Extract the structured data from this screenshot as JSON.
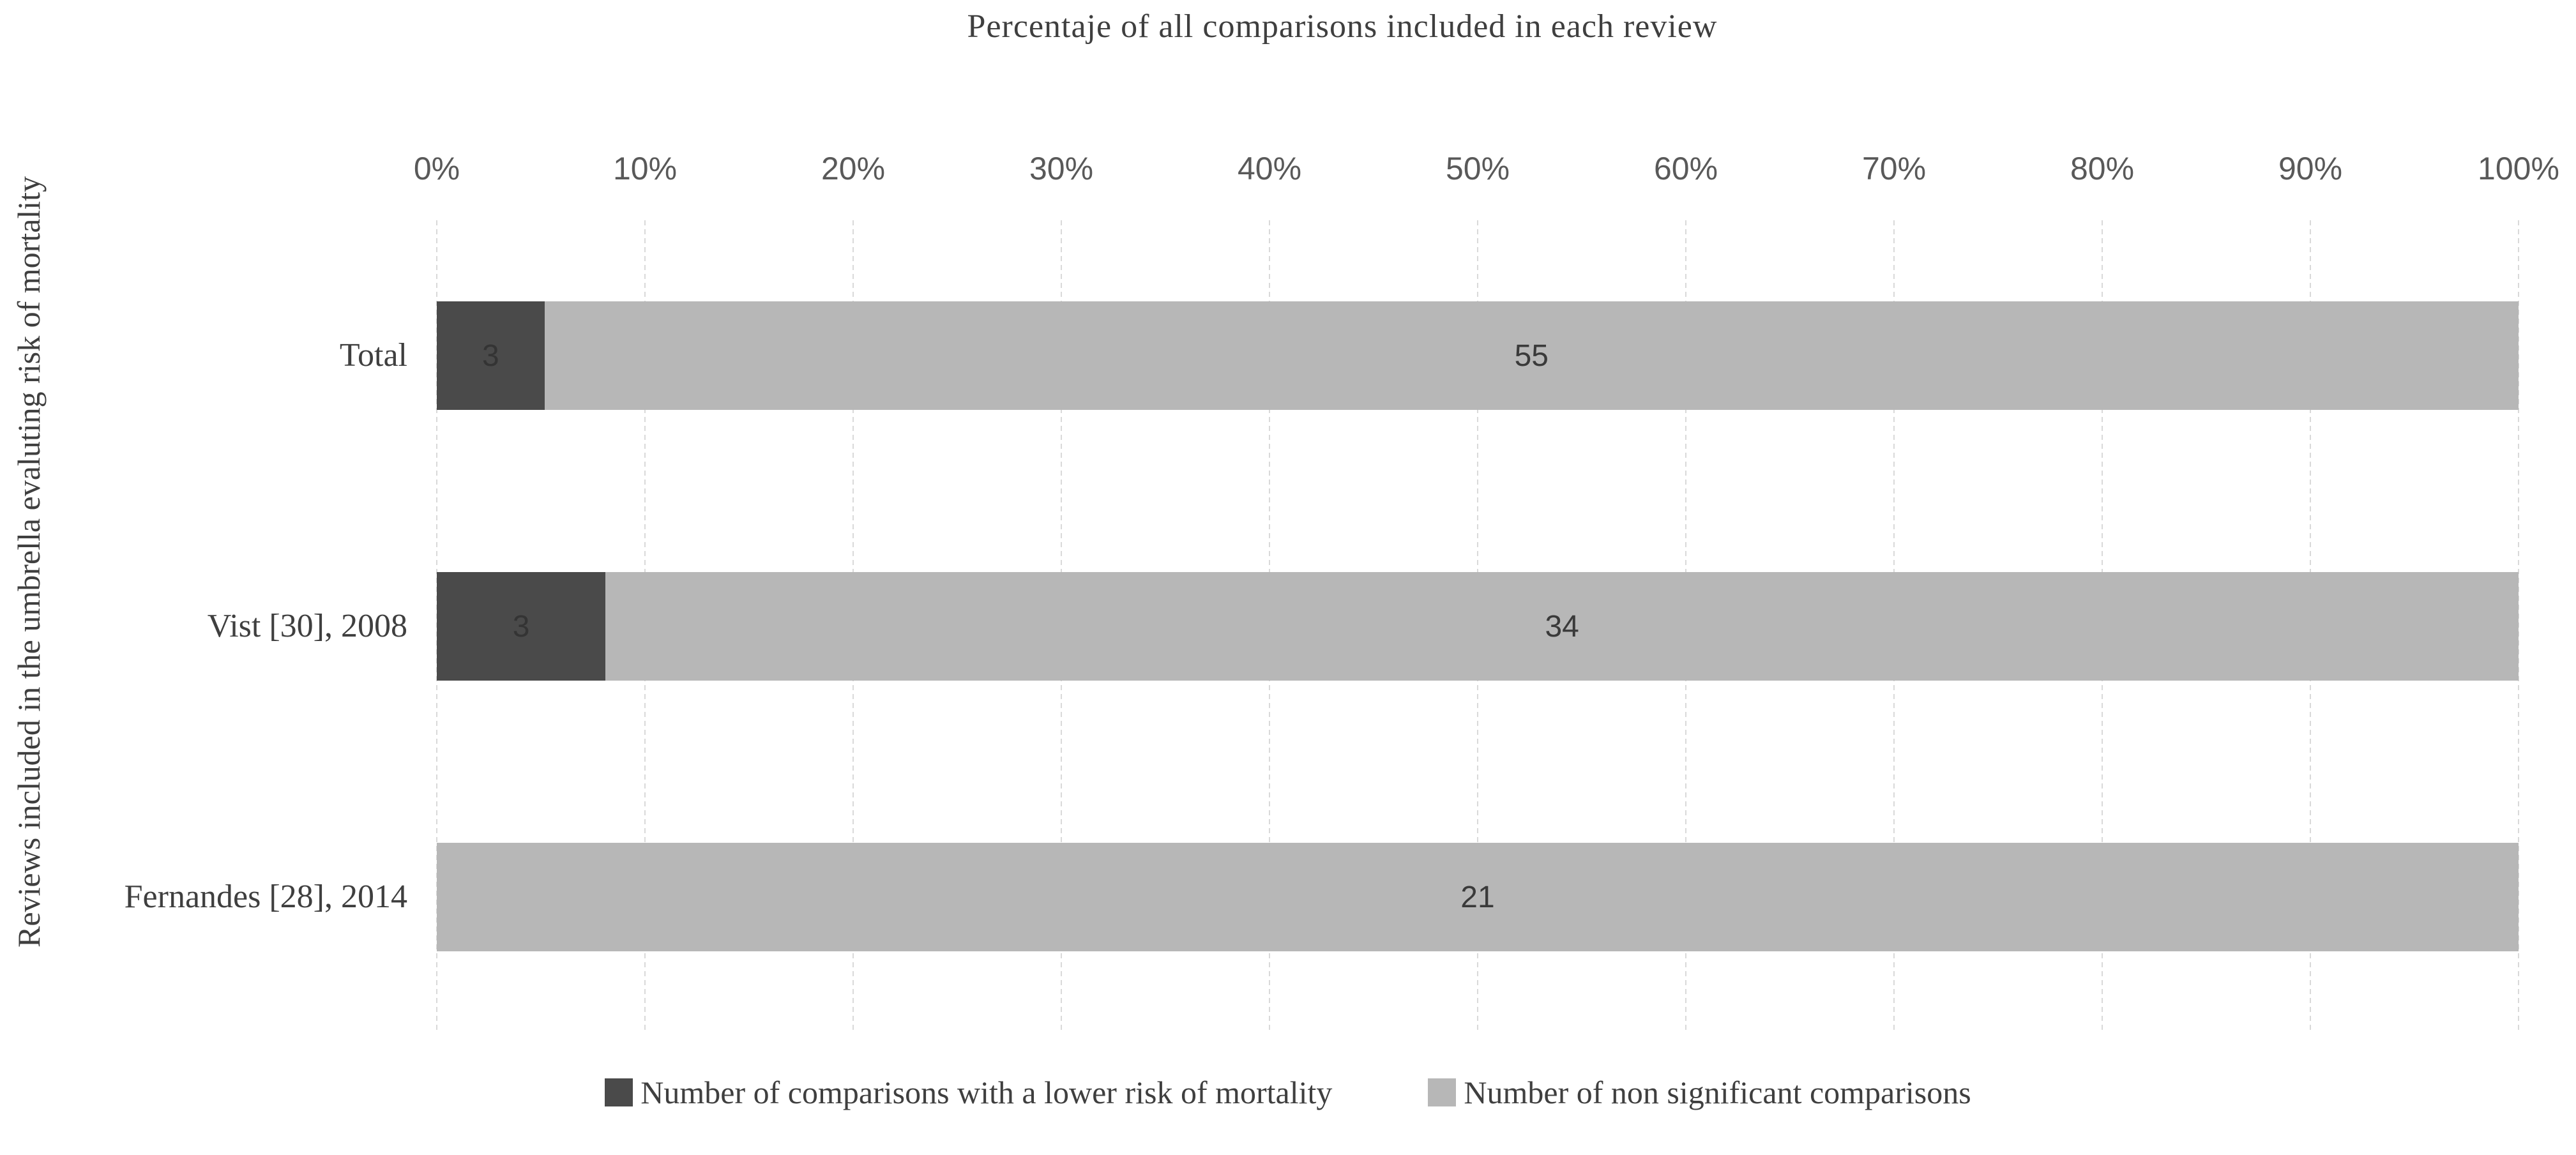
{
  "chart_data": {
    "type": "bar",
    "orientation": "horizontal",
    "stacked": "percent",
    "title": "Percentaje of all comparisons included in each review",
    "xlabel": "",
    "ylabel": "Reviews included in the umbrella evaluting  risk of mortality",
    "categories": [
      "Total",
      "Vist [30], 2008",
      "Fernandes [28], 2014"
    ],
    "series": [
      {
        "name": "Number of comparisons with a lower risk of mortality",
        "color": "#4a4a4a",
        "label_color": "#343434",
        "values": [
          3,
          3,
          0
        ]
      },
      {
        "name": "Number of non significant comparisons",
        "color": "#b7b7b7",
        "label_color": "#3a3a3a",
        "values": [
          55,
          34,
          21
        ]
      }
    ],
    "x_ticks": [
      "0%",
      "10%",
      "20%",
      "30%",
      "40%",
      "50%",
      "60%",
      "70%",
      "80%",
      "90%",
      "100%"
    ],
    "xlim": [
      0,
      100
    ],
    "grid": {
      "vertical": true,
      "style": "dashed",
      "color": "#d9d9d9"
    },
    "legend_position": "bottom"
  }
}
